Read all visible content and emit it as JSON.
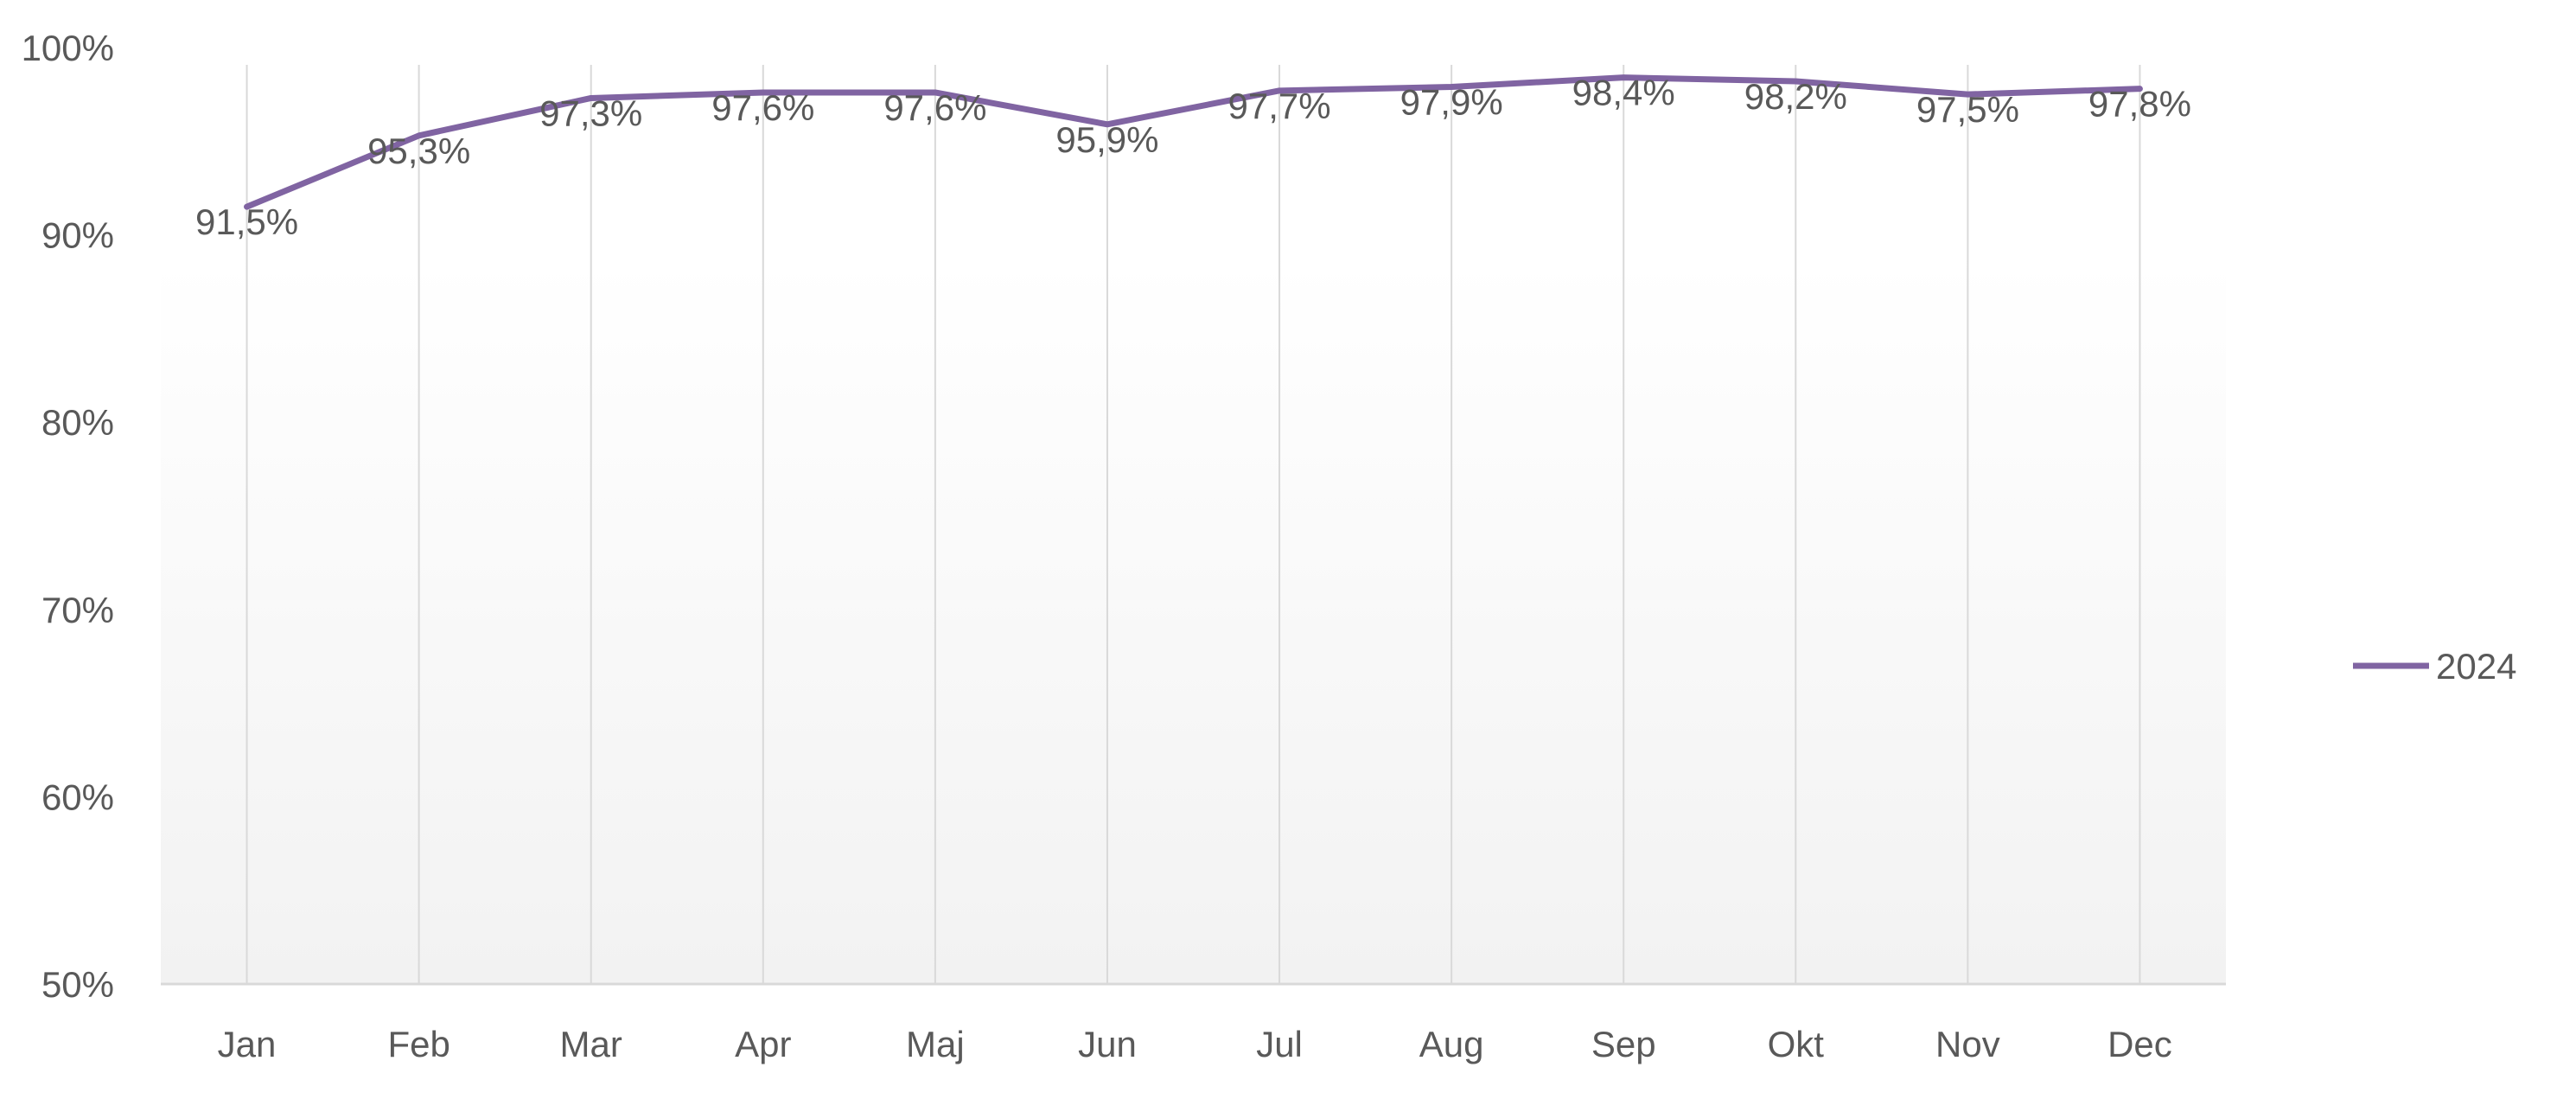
{
  "chart_data": {
    "type": "line",
    "categories": [
      "Jan",
      "Feb",
      "Mar",
      "Apr",
      "Maj",
      "Jun",
      "Jul",
      "Aug",
      "Sep",
      "Okt",
      "Nov",
      "Dec"
    ],
    "series": [
      {
        "name": "2024",
        "values": [
          91.5,
          95.3,
          97.3,
          97.6,
          97.6,
          95.9,
          97.7,
          97.9,
          98.4,
          98.2,
          97.5,
          97.8
        ],
        "labels": [
          "91,5%",
          "95,3%",
          "97,3%",
          "97,6%",
          "97,6%",
          "95,9%",
          "97,7%",
          "97,9%",
          "98,4%",
          "98,2%",
          "97,5%",
          "97,8%"
        ],
        "color": "#8064A2"
      }
    ],
    "ylim": [
      50,
      100
    ],
    "yticks": [
      50,
      60,
      70,
      80,
      90,
      100
    ],
    "ytick_labels": [
      "50%",
      "60%",
      "70%",
      "80%",
      "90%",
      "100%"
    ],
    "grid": "vertical",
    "legend": "right",
    "background_gradient": [
      "#f2f2f2",
      "#ffffff"
    ],
    "gridline_color": "#d9d9d9",
    "axis_color": "#d9d9d9"
  }
}
